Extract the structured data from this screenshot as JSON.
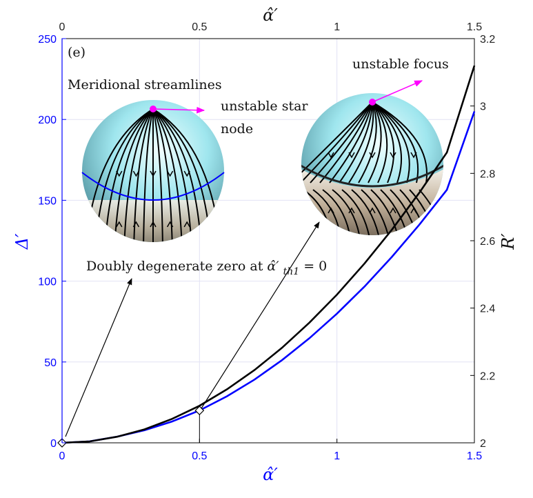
{
  "chart_data": {
    "type": "line",
    "panel_label": "(e)",
    "xlabel": "α̂′",
    "top_xlabel": "α̂′",
    "ylabel_left": "Δ′",
    "ylabel_right": "R′",
    "xlim": [
      0,
      1.5
    ],
    "ylim_left": [
      0,
      250
    ],
    "ylim_right": [
      2.0,
      3.2
    ],
    "x_ticks": [
      "0",
      "0.5",
      "1",
      "1.5"
    ],
    "y_left_ticks": [
      "0",
      "50",
      "100",
      "150",
      "200",
      "250"
    ],
    "y_right_ticks": [
      "2",
      "2.2",
      "2.4",
      "2.6",
      "2.8",
      "3",
      "3.2"
    ],
    "grid": true,
    "colors": {
      "left_axis": "#0000ff",
      "right_axis": "#000000",
      "focus_marker": "#ff00ff"
    },
    "series": [
      {
        "axis": "left",
        "color": "#0000ff",
        "x": [
          0,
          0.1,
          0.2,
          0.3,
          0.4,
          0.5,
          0.6,
          0.7,
          0.8,
          0.9,
          1.0,
          1.1,
          1.2,
          1.3,
          1.4,
          1.5
        ],
        "y": [
          0,
          0.9,
          3.8,
          7.8,
          13.2,
          20,
          28.8,
          39.1,
          51.1,
          64.7,
          79.9,
          96.6,
          115,
          135,
          156.5,
          205
        ]
      },
      {
        "axis": "right",
        "color": "#000000",
        "x": [
          0,
          0.1,
          0.2,
          0.3,
          0.4,
          0.5,
          0.6,
          0.7,
          0.8,
          0.9,
          1.0,
          1.1,
          1.2,
          1.3,
          1.4,
          1.5
        ],
        "y": [
          2.0,
          2.004,
          2.018,
          2.04,
          2.071,
          2.11,
          2.159,
          2.216,
          2.282,
          2.357,
          2.44,
          2.532,
          2.633,
          2.743,
          2.862,
          3.12
        ]
      }
    ],
    "markers": [
      {
        "x": 0,
        "y_left": 0,
        "shape": "diamond"
      },
      {
        "x": 0.5,
        "y_left": 20,
        "shape": "diamond"
      }
    ],
    "annotations": {
      "title": "Meridional streamlines",
      "star_node_line1": "unstable star",
      "star_node_line2": "node",
      "focus": "unstable focus",
      "degenerate_prefix": "Doubly degenerate zero at ",
      "degenerate_symbol": "α̂′",
      "degenerate_subscript": "th1",
      "degenerate_suffix": " = 0"
    }
  }
}
